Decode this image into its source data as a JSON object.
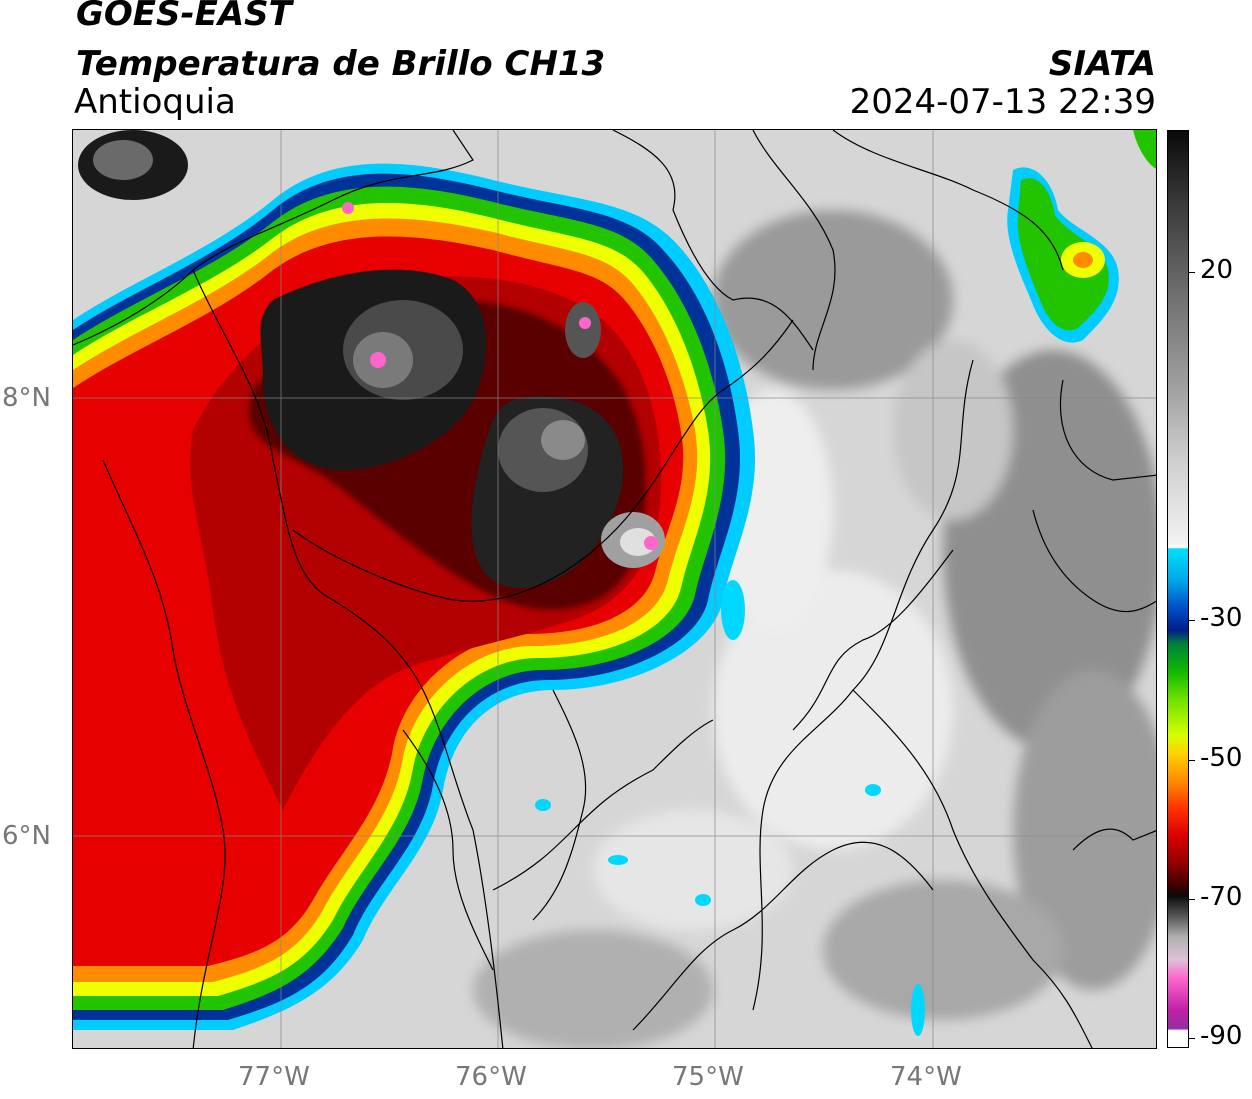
{
  "header": {
    "satellite": "GOES-EAST",
    "product": "Temperatura de Brillo CH13",
    "region": "Antioquia",
    "organization": "SIATA",
    "timestamp": "2024-07-13 22:39"
  },
  "axes": {
    "lat_ticks": [
      {
        "value": 8,
        "label": "8°N"
      },
      {
        "value": 6,
        "label": "6°N"
      }
    ],
    "lon_ticks": [
      {
        "value": -77,
        "label": "77°W"
      },
      {
        "value": -76,
        "label": "76°W"
      },
      {
        "value": -75,
        "label": "75°W"
      },
      {
        "value": -74,
        "label": "74°W"
      }
    ],
    "lon_range": [
      -77.95,
      -73.0
    ],
    "lat_range": [
      4.95,
      9.2
    ]
  },
  "colorbar": {
    "ticks": [
      {
        "value": 20,
        "label": "20"
      },
      {
        "value": -30,
        "label": "-30"
      },
      {
        "value": -50,
        "label": "-50"
      },
      {
        "value": -70,
        "label": "-70"
      },
      {
        "value": -90,
        "label": "-90"
      }
    ],
    "range": [
      -90,
      40
    ]
  },
  "colors": {
    "cold_core": "#1a1a1a",
    "deep_red": "#7a0000",
    "red": "#e60000",
    "orange": "#ff8c00",
    "yellow": "#f0ff00",
    "green": "#22c400",
    "blue": "#003399",
    "cyan": "#00d8ff",
    "magenta": "#ff66cc"
  }
}
